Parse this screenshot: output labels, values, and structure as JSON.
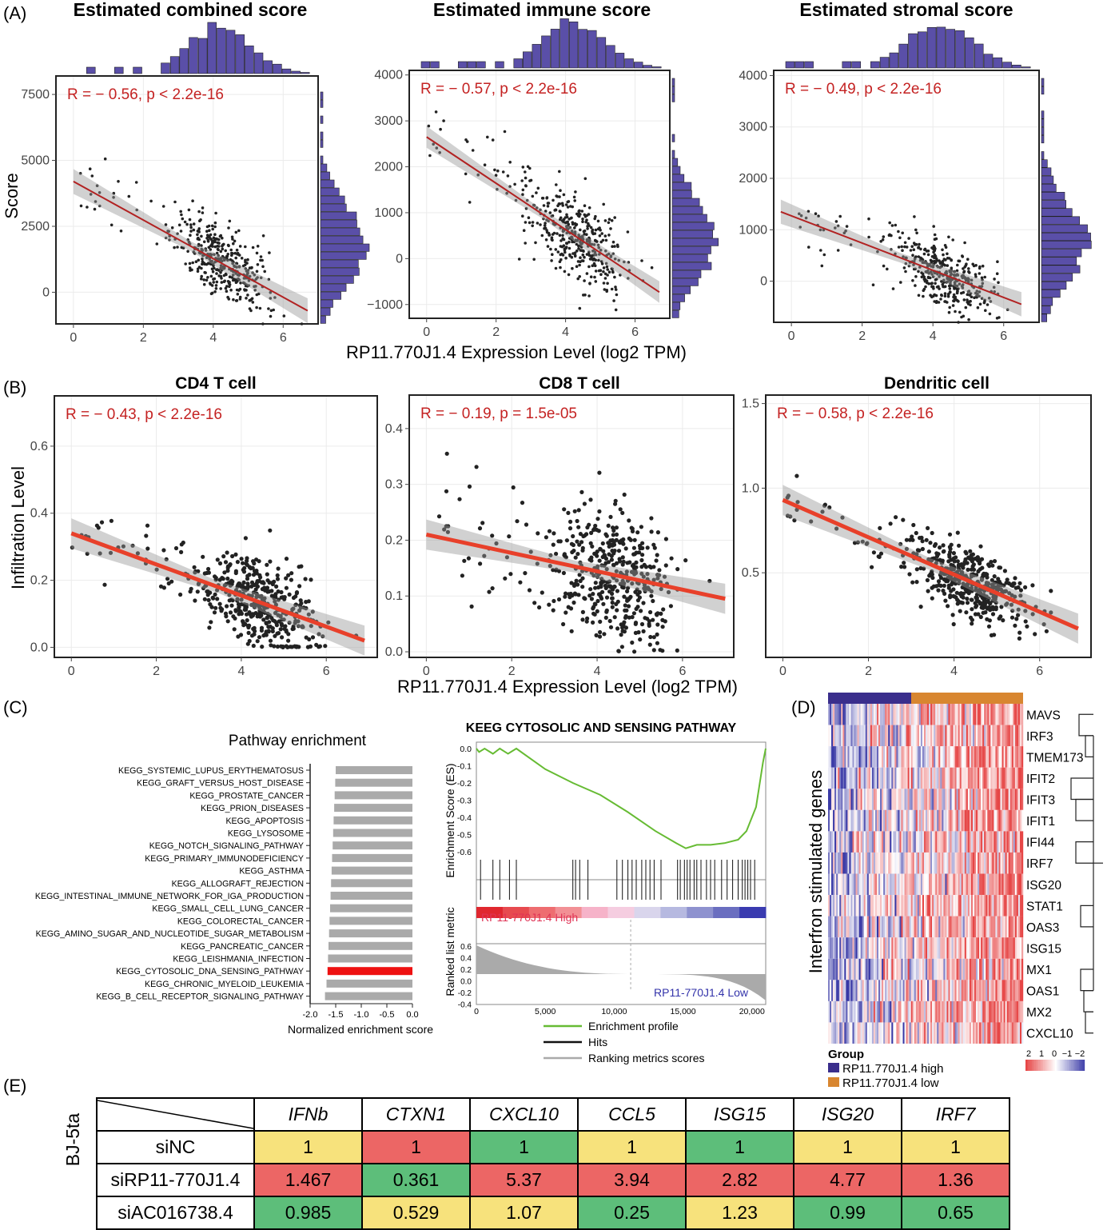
{
  "panel_labels": {
    "A": "(A)",
    "B": "(B)",
    "C": "(C)",
    "D": "(D)",
    "E": "(E)"
  },
  "panelA": {
    "xlabel": "RP11.770J1.4 Expression Level (log2 TPM)",
    "ylabel": "Score",
    "hist_color": "#5a4fa8",
    "plots": [
      {
        "title": "Estimated combined score",
        "annotation": "R = − 0.56, p < 2.2e-16",
        "yticks": [
          "7500",
          "5000",
          "2500",
          "0"
        ],
        "xticks": [
          "0",
          "2",
          "4",
          "6"
        ]
      },
      {
        "title": "Estimated immune score",
        "annotation": "R = − 0.57, p < 2.2e-16",
        "yticks": [
          "4000",
          "3000",
          "2000",
          "1000",
          "0",
          "−1000"
        ],
        "xticks": [
          "0",
          "2",
          "4",
          "6"
        ]
      },
      {
        "title": "Estimated stromal score",
        "annotation": "R = − 0.49, p < 2.2e-16",
        "yticks": [
          "4000",
          "3000",
          "2000",
          "1000",
          "0"
        ],
        "xticks": [
          "0",
          "2",
          "4",
          "6"
        ]
      }
    ]
  },
  "panelB": {
    "xlabel": "RP11.770J1.4 Expression Level (log2 TPM)",
    "ylabel": "Infiltration Level",
    "plots": [
      {
        "title": "CD4 T cell",
        "annotation": "R = − 0.43, p < 2.2e-16",
        "yticks": [
          "0.6",
          "0.4",
          "0.2",
          "0.0"
        ],
        "xticks": [
          "0",
          "2",
          "4",
          "6"
        ]
      },
      {
        "title": "CD8 T cell",
        "annotation": "R = − 0.19, p = 1.5e-05",
        "yticks": [
          "0.4",
          "0.3",
          "0.2",
          "0.1",
          "0.0"
        ],
        "xticks": [
          "0",
          "2",
          "4",
          "6"
        ]
      },
      {
        "title": "Dendritic cell",
        "annotation": "R = − 0.58, p < 2.2e-16",
        "yticks": [
          "1.5",
          "1.0",
          "0.5"
        ],
        "xticks": [
          "0",
          "2",
          "4",
          "6"
        ]
      }
    ]
  },
  "panelC": {
    "bar_title": "Pathway enrichment",
    "bar_xlabel": "Normalized enrichment score",
    "bar_xticks": [
      "-2.0",
      "-1.5",
      "-1.0",
      "-0.5",
      "0.0"
    ],
    "gsea_title": "KEEG CYTOSOLIC AND SENSING PATHWAY",
    "gsea_ylabel_top": "Enrichment Score (ES)",
    "gsea_ylabel_bottom": "Ranked list metric",
    "gsea_yticks_top": [
      "0.0",
      "-0.1",
      "-0.2",
      "-0.3",
      "-0.4",
      "-0.5",
      "-0.6"
    ],
    "gsea_yticks_bottom": [
      "0.6",
      "0.4",
      "0.2",
      "0.0",
      "-0.2",
      "-0.4"
    ],
    "gsea_xticks": [
      "0",
      "5,000",
      "10,000",
      "15,000",
      "20,000"
    ],
    "high_label": "RP11-770J1.4 High",
    "low_label": "RP11-770J1.4 Low",
    "legend": [
      "Enrichment profile",
      "Hits",
      "Ranking metrics scores"
    ],
    "colors": {
      "enrichment": "#66bb33",
      "hits": "#111111",
      "ranking": "#aaaaaa",
      "highlight": "#ee1111",
      "bars": "#aaaaaa"
    }
  },
  "panelD": {
    "ylabel": "Interfron stimulated genes",
    "genes": [
      "MAVS",
      "IRF3",
      "TMEM173",
      "IFIT2",
      "IFIT3",
      "IFIT1",
      "IFI44",
      "IRF7",
      "ISG20",
      "STAT1",
      "OAS3",
      "ISG15",
      "MX1",
      "OAS1",
      "MX2",
      "CXCL10"
    ],
    "legend_title": "Group",
    "groups": [
      {
        "name": "RP11.770J1.4 high",
        "color": "#3a2e8c"
      },
      {
        "name": "RP11.770J1.4 low",
        "color": "#d88630"
      }
    ],
    "scale_labels": [
      "2",
      "1",
      "0",
      "−1",
      "−2"
    ]
  },
  "panelE": {
    "row_group_label": "BJ-5ta",
    "colors": {
      "yellow": "#f7e27c",
      "red": "#ec6665",
      "green": "#5dbe7a"
    },
    "table": {
      "columns": [
        "IFNb",
        "CTXN1",
        "CXCL10",
        "CCL5",
        "ISG15",
        "ISG20",
        "IRF7"
      ],
      "rows": [
        {
          "label": "siNC",
          "values": [
            "1",
            "1",
            "1",
            "1",
            "1",
            "1",
            "1"
          ],
          "colors": [
            "yellow",
            "red",
            "green",
            "yellow",
            "green",
            "yellow",
            "yellow"
          ]
        },
        {
          "label": "siRP11-770J1.4",
          "values": [
            "1.467",
            "0.361",
            "5.37",
            "3.94",
            "2.82",
            "4.77",
            "1.36"
          ],
          "colors": [
            "red",
            "green",
            "red",
            "red",
            "red",
            "red",
            "red"
          ]
        },
        {
          "label": "siAC016738.4",
          "values": [
            "0.985",
            "0.529",
            "1.07",
            "0.25",
            "1.23",
            "0.99",
            "0.65"
          ],
          "colors": [
            "green",
            "yellow",
            "yellow",
            "green",
            "yellow",
            "green",
            "green"
          ]
        }
      ]
    }
  },
  "chart_data": [
    {
      "type": "scatter",
      "title": "Estimated combined score",
      "xlabel": "RP11.770J1.4 Expression Level (log2 TPM)",
      "ylabel": "Score",
      "xlim": [
        -0.5,
        7
      ],
      "ylim": [
        -1200,
        8200
      ],
      "fit_line": {
        "x": [
          0,
          6.7
        ],
        "y": [
          4200,
          -700
        ]
      },
      "annotation": "R = − 0.56, p < 2.2e-16"
    },
    {
      "type": "scatter",
      "title": "Estimated immune score",
      "xlabel": "RP11.770J1.4 Expression Level (log2 TPM)",
      "ylim": [
        -1300,
        4100
      ],
      "fit_line": {
        "x": [
          0,
          6.7
        ],
        "y": [
          2650,
          -730
        ]
      },
      "annotation": "R = − 0.57, p < 2.2e-16"
    },
    {
      "type": "scatter",
      "title": "Estimated stromal score",
      "xlabel": "RP11.770J1.4 Expression Level (log2 TPM)",
      "ylim": [
        -800,
        4100
      ],
      "fit_line": {
        "x": [
          -0.3,
          6.5
        ],
        "y": [
          1350,
          -450
        ]
      },
      "annotation": "R = − 0.49, p < 2.2e-16"
    },
    {
      "type": "scatter",
      "title": "CD4 T cell",
      "xlabel": "RP11.770J1.4 Expression Level (log2 TPM)",
      "ylabel": "Infiltration Level",
      "ylim": [
        -0.03,
        0.75
      ],
      "fit_line": {
        "x": [
          0,
          6.9
        ],
        "y": [
          0.34,
          0.02
        ]
      },
      "annotation": "R = − 0.43, p < 2.2e-16"
    },
    {
      "type": "scatter",
      "title": "CD8 T cell",
      "xlabel": "RP11.770J1.4 Expression Level (log2 TPM)",
      "ylim": [
        -0.01,
        0.46
      ],
      "fit_line": {
        "x": [
          0,
          7
        ],
        "y": [
          0.21,
          0.095
        ]
      },
      "annotation": "R = − 0.19, p = 1.5e-05"
    },
    {
      "type": "scatter",
      "title": "Dendritic cell",
      "xlabel": "RP11.770J1.4 Expression Level (log2 TPM)",
      "ylim": [
        0.0,
        1.55
      ],
      "fit_line": {
        "x": [
          0,
          6.9
        ],
        "y": [
          0.93,
          0.17
        ]
      },
      "annotation": "R = − 0.58, p < 2.2e-16"
    },
    {
      "type": "bar",
      "title": "Pathway enrichment",
      "orientation": "horizontal",
      "xlabel": "Normalized enrichment score",
      "xlim": [
        -2.0,
        0.0
      ],
      "categories": [
        "KEGG_SYSTEMIC_LUPUS_ERYTHEMATOSUS",
        "KEGG_GRAFT_VERSUS_HOST_DISEASE",
        "KEGG_PROSTATE_CANCER",
        "KEGG_PRION_DISEASES",
        "KEGG_APOPTOSIS",
        "KEGG_LYSOSOME",
        "KEGG_NOTCH_SIGNALING_PATHWAY",
        "KEGG_PRIMARY_IMMUNODEFICIENCY",
        "KEGG_ASTHMA",
        "KEGG_ALLOGRAFT_REJECTION",
        "KEGG_INTESTINAL_IMMUNE_NETWORK_FOR_IGA_PRODUCTION",
        "KEGG_SMALL_CELL_LUNG_CANCER",
        "KEGG_COLORECTAL_CANCER",
        "KEGG_AMINO_SUGAR_AND_NUCLEOTIDE_SUGAR_METABOLISM",
        "KEGG_PANCREATIC_CANCER",
        "KEGG_LEISHMANIA_INFECTION",
        "KEGG_CYTOSOLIC_DNA_SENSING_PATHWAY",
        "KEGG_CHRONIC_MYELOID_LEUKEMIA",
        "KEGG_B_CELL_RECEPTOR_SIGNALING_PATHWAY"
      ],
      "values": [
        -1.5,
        -1.51,
        -1.52,
        -1.53,
        -1.54,
        -1.55,
        -1.56,
        -1.57,
        -1.58,
        -1.59,
        -1.6,
        -1.61,
        -1.62,
        -1.63,
        -1.64,
        -1.65,
        -1.66,
        -1.68,
        -1.71
      ],
      "highlighted": "KEGG_CYTOSOLIC_DNA_SENSING_PATHWAY"
    },
    {
      "type": "line",
      "title": "KEEG CYTOSOLIC AND SENSING PATHWAY",
      "ylabel": "Enrichment Score (ES)",
      "xlim": [
        0,
        21000
      ],
      "ylim": [
        -0.6,
        0.0
      ],
      "x": [
        0,
        200,
        600,
        1200,
        1700,
        2300,
        2900,
        5000,
        7000,
        9000,
        11000,
        13000,
        14500,
        15200,
        16000,
        17000,
        18000,
        19000,
        19600,
        20300,
        20800,
        21000
      ],
      "y": [
        0,
        -0.02,
        0.0,
        -0.03,
        0.0,
        -0.03,
        0.0,
        -0.12,
        -0.2,
        -0.27,
        -0.37,
        -0.48,
        -0.55,
        -0.58,
        -0.56,
        -0.56,
        -0.55,
        -0.53,
        -0.48,
        -0.34,
        -0.08,
        0.0
      ]
    },
    {
      "type": "heatmap",
      "title": "",
      "ylabel": "Interfron stimulated genes",
      "rows": [
        "MAVS",
        "IRF3",
        "TMEM173",
        "IFIT2",
        "IFIT3",
        "IFIT1",
        "IFI44",
        "IRF7",
        "ISG20",
        "STAT1",
        "OAS3",
        "ISG15",
        "MX1",
        "OAS1",
        "MX2",
        "CXCL10"
      ],
      "color_range": [
        -2,
        2
      ]
    },
    {
      "type": "table",
      "columns": [
        "IFNb",
        "CTXN1",
        "CXCL10",
        "CCL5",
        "ISG15",
        "ISG20",
        "IRF7"
      ],
      "rows": [
        "siNC",
        "siRP11-770J1.4",
        "siAC016738.4"
      ],
      "values": [
        [
          1,
          1,
          1,
          1,
          1,
          1,
          1
        ],
        [
          1.467,
          0.361,
          5.37,
          3.94,
          2.82,
          4.77,
          1.36
        ],
        [
          0.985,
          0.529,
          1.07,
          0.25,
          1.23,
          0.99,
          0.65
        ]
      ]
    }
  ]
}
